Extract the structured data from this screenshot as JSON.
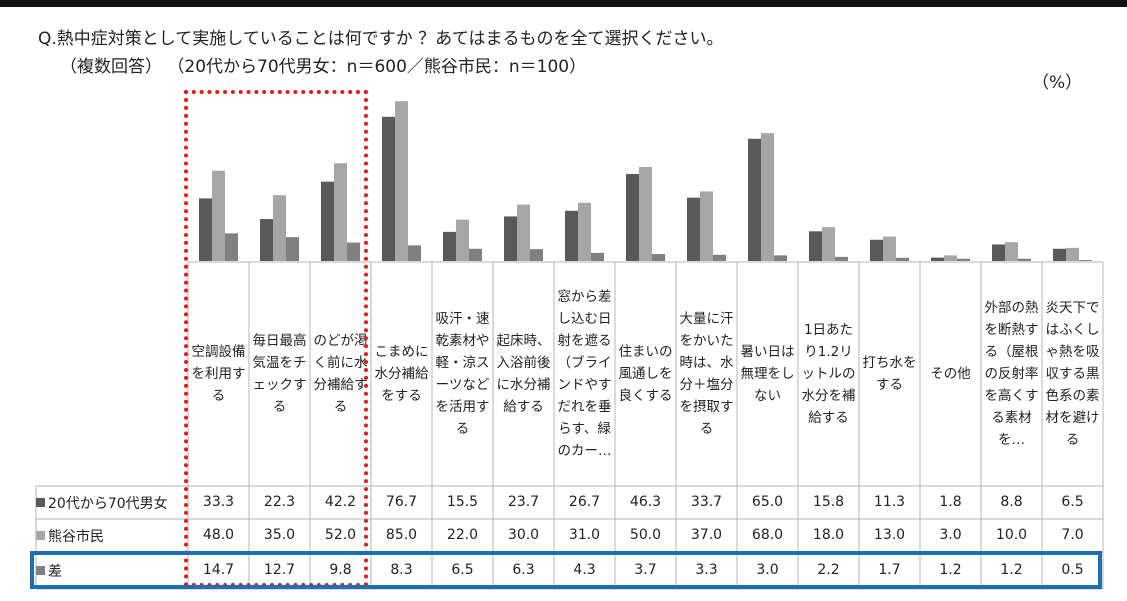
{
  "title_line1": "Q.熱中症対策として実施していることは何ですか ？あてはまるものを全て選択ください。",
  "title_line2": "（複数回答） （20代から70代男女：n＝600／熊谷市民：n＝100）",
  "unit": "（%）",
  "colors": {
    "series1": "#595959",
    "series2": "#a6a6a6",
    "series3": "#808080",
    "highlight_red": "#e01b1b",
    "highlight_blue": "#1f6fb0"
  },
  "chart_data": {
    "type": "bar",
    "categories": [
      "空調設備を利用する",
      "毎日最高気温をチェックする",
      "のどが渇く前に水分補給する",
      "こまめに水分補給をする",
      "吸汗・速乾素材や軽・涼スーツなどを活用する",
      "起床時、入浴前後に水分補給する",
      "窓から差し込む日射を遮る（ブラインドやすだれを垂らす、緑のカー…",
      "住まいの風通しを良くする",
      "大量に汗をかいた時は、水分＋塩分を摂取する",
      "暑い日は無理をしない",
      "1日あたり1.2リットルの水分を補給する",
      "打ち水をする",
      "その他",
      "外部の熱を断熱する（屋根の反射率を高くする素材を…",
      "炎天下ではふくしゃ熱を吸収する黒色系の素材を避ける"
    ],
    "series": [
      {
        "name": "20代から70代男女",
        "values": [
          "33.3",
          "22.3",
          "42.2",
          "76.7",
          "15.5",
          "23.7",
          "26.7",
          "46.3",
          "33.7",
          "65.0",
          "15.8",
          "11.3",
          "1.8",
          "8.8",
          "6.5"
        ]
      },
      {
        "name": "熊谷市民",
        "values": [
          "48.0",
          "35.0",
          "52.0",
          "85.0",
          "22.0",
          "30.0",
          "31.0",
          "50.0",
          "37.0",
          "68.0",
          "18.0",
          "13.0",
          "3.0",
          "10.0",
          "7.0"
        ]
      },
      {
        "name": "差",
        "values": [
          "14.7",
          "12.7",
          "9.8",
          "8.3",
          "6.5",
          "6.3",
          "4.3",
          "3.7",
          "3.3",
          "3.0",
          "2.2",
          "1.7",
          "1.2",
          "1.2",
          "0.5"
        ]
      }
    ],
    "ylim": [
      0,
      100
    ],
    "grid": false,
    "legend": "table-rows"
  }
}
